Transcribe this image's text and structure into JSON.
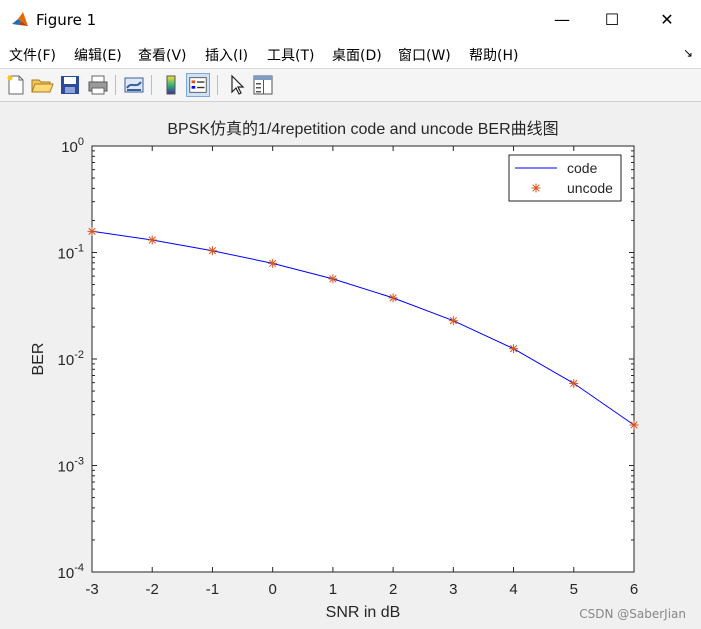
{
  "window": {
    "title": "Figure 1",
    "minimize": "—",
    "maximize": "☐",
    "close": "✕"
  },
  "menu": [
    "文件(F)",
    "编辑(E)",
    "查看(V)",
    "插入(I)",
    "工具(T)",
    "桌面(D)",
    "窗口(W)",
    "帮助(H)"
  ],
  "menu_arrow": "↘",
  "toolbar_icons": [
    "new-figure-icon",
    "open-file-icon",
    "save-icon",
    "print-icon",
    "link-plot-icon",
    "insert-colorbar-icon",
    "insert-legend-icon",
    "edit-plot-icon",
    "property-inspector-icon"
  ],
  "watermark": "CSDN @SaberJian",
  "colors": {
    "code_line": "#0000ff",
    "uncode_marker": "#d95319"
  },
  "chart_data": {
    "type": "line",
    "title": "BPSK仿真的1/4repetition code and uncode BER曲线图",
    "xlabel": "SNR in dB",
    "ylabel": "BER",
    "xlim": [
      -3,
      6
    ],
    "ylim": [
      0.0001,
      1
    ],
    "yscale": "log",
    "grid": false,
    "legend_position": "top-right",
    "x": [
      -3,
      -2,
      -1,
      0,
      1,
      2,
      3,
      4,
      5,
      6
    ],
    "xtick_labels": [
      "-3",
      "-2",
      "-1",
      "0",
      "1",
      "2",
      "3",
      "4",
      "5",
      "6"
    ],
    "ytick_labels": [
      {
        "base": "10",
        "exp": "0"
      },
      {
        "base": "10",
        "exp": "-1"
      },
      {
        "base": "10",
        "exp": "-2"
      },
      {
        "base": "10",
        "exp": "-3"
      },
      {
        "base": "10",
        "exp": "-4"
      }
    ],
    "series": [
      {
        "name": "code",
        "style": "line",
        "values": [
          0.158,
          0.131,
          0.104,
          0.079,
          0.0565,
          0.0375,
          0.0229,
          0.0125,
          0.0059,
          0.0024
        ]
      },
      {
        "name": "uncode",
        "style": "marker",
        "marker": "*",
        "values": [
          0.158,
          0.131,
          0.104,
          0.079,
          0.0565,
          0.0375,
          0.0229,
          0.0125,
          0.0059,
          0.0024
        ]
      }
    ]
  }
}
